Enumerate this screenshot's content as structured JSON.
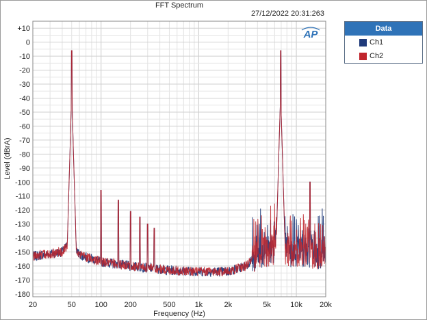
{
  "chart_data": {
    "type": "line",
    "title": "FFT Spectrum",
    "timestamp": "27/12/2022 20:31:263",
    "logo": "AP",
    "xlabel": "Frequency (Hz)",
    "ylabel": "Level (dBrA)",
    "xscale": "log",
    "xlim": [
      20,
      20000
    ],
    "ylim": [
      -182,
      15
    ],
    "x_ticks": [
      {
        "value": 20,
        "label": "20"
      },
      {
        "value": 50,
        "label": "50"
      },
      {
        "value": 100,
        "label": "100"
      },
      {
        "value": 200,
        "label": "200"
      },
      {
        "value": 500,
        "label": "500"
      },
      {
        "value": 1000,
        "label": "1k"
      },
      {
        "value": 2000,
        "label": "2k"
      },
      {
        "value": 5000,
        "label": "5k"
      },
      {
        "value": 10000,
        "label": "10k"
      },
      {
        "value": 20000,
        "label": "20k"
      }
    ],
    "y_ticks": [
      {
        "value": 10,
        "label": "+10"
      },
      {
        "value": 0,
        "label": "0"
      },
      {
        "value": -10,
        "label": "-10"
      },
      {
        "value": -20,
        "label": "-20"
      },
      {
        "value": -30,
        "label": "-30"
      },
      {
        "value": -40,
        "label": "-40"
      },
      {
        "value": -50,
        "label": "-50"
      },
      {
        "value": -60,
        "label": "-60"
      },
      {
        "value": -70,
        "label": "-70"
      },
      {
        "value": -80,
        "label": "-80"
      },
      {
        "value": -90,
        "label": "-90"
      },
      {
        "value": -100,
        "label": "-100"
      },
      {
        "value": -110,
        "label": "-110"
      },
      {
        "value": -120,
        "label": "-120"
      },
      {
        "value": -130,
        "label": "-130"
      },
      {
        "value": -140,
        "label": "-140"
      },
      {
        "value": -150,
        "label": "-150"
      },
      {
        "value": -160,
        "label": "-160"
      },
      {
        "value": -170,
        "label": "-170"
      },
      {
        "value": -180,
        "label": "-180"
      }
    ],
    "grid": true,
    "legend": {
      "title": "Data",
      "position": "right"
    },
    "series": [
      {
        "name": "Ch1",
        "color": "#1f3a7a",
        "peaks": [
          [
            50,
            -6
          ],
          [
            100,
            -106
          ],
          [
            150,
            -113
          ],
          [
            200,
            -121
          ],
          [
            250,
            -125
          ],
          [
            300,
            -130
          ],
          [
            350,
            -133
          ],
          [
            6900,
            -6
          ],
          [
            13800,
            -100
          ]
        ],
        "noise_floor": [
          [
            20,
            -153
          ],
          [
            40,
            -150
          ],
          [
            50,
            -141
          ],
          [
            60,
            -152
          ],
          [
            100,
            -157
          ],
          [
            200,
            -160
          ],
          [
            500,
            -163
          ],
          [
            1000,
            -164
          ],
          [
            2000,
            -164
          ],
          [
            3000,
            -160
          ],
          [
            4000,
            -152
          ],
          [
            6000,
            -148
          ],
          [
            9000,
            -150
          ],
          [
            13000,
            -150
          ],
          [
            17000,
            -152
          ],
          [
            20000,
            -150
          ]
        ]
      },
      {
        "name": "Ch2",
        "color": "#c0242c",
        "peaks": [
          [
            50,
            -6
          ],
          [
            100,
            -106
          ],
          [
            150,
            -113
          ],
          [
            200,
            -121
          ],
          [
            250,
            -125
          ],
          [
            300,
            -130
          ],
          [
            350,
            -133
          ],
          [
            6900,
            -6
          ],
          [
            13800,
            -100
          ]
        ],
        "noise_floor": [
          [
            20,
            -153
          ],
          [
            40,
            -150
          ],
          [
            50,
            -141
          ],
          [
            60,
            -152
          ],
          [
            100,
            -157
          ],
          [
            200,
            -160
          ],
          [
            500,
            -163
          ],
          [
            1000,
            -164
          ],
          [
            2000,
            -164
          ],
          [
            3000,
            -160
          ],
          [
            4000,
            -152
          ],
          [
            6000,
            -148
          ],
          [
            9000,
            -150
          ],
          [
            13000,
            -150
          ],
          [
            17000,
            -152
          ],
          [
            20000,
            -150
          ]
        ]
      }
    ]
  }
}
